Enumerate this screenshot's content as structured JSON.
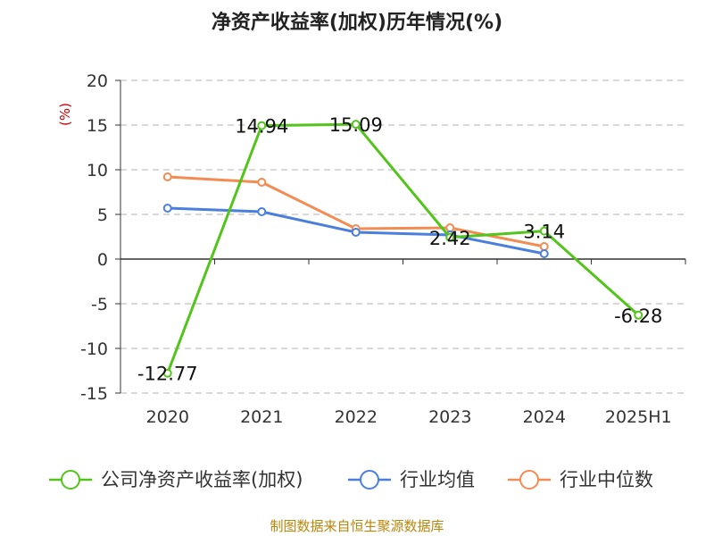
{
  "chart_data": {
    "type": "line",
    "title": "净资产收益率(加权)历年情况(%)",
    "ylabel": "(%)",
    "categories": [
      "2020",
      "2021",
      "2022",
      "2023",
      "2024",
      "2025H1"
    ],
    "y_ticks": [
      "20",
      "15",
      "10",
      "5",
      "0",
      "-5",
      "-10",
      "-15"
    ],
    "ylim": [
      -15,
      20
    ],
    "grid": true,
    "legend_position": "bottom",
    "series": [
      {
        "name": "公司净资产收益率(加权)",
        "color": "#52c41a",
        "values": [
          -12.77,
          14.94,
          15.09,
          2.42,
          3.14,
          -6.28
        ],
        "labels": [
          "-12.77",
          "14.94",
          "15.09",
          "2.42",
          "3.14",
          "-6.28"
        ]
      },
      {
        "name": "行业均值",
        "color": "#4a7fdc",
        "values": [
          5.7,
          5.3,
          3.0,
          2.7,
          0.6,
          null
        ]
      },
      {
        "name": "行业中位数",
        "color": "#f28c52",
        "values": [
          9.2,
          8.6,
          3.4,
          3.5,
          1.4,
          null
        ]
      }
    ]
  },
  "source": "制图数据来自恒生聚源数据库"
}
